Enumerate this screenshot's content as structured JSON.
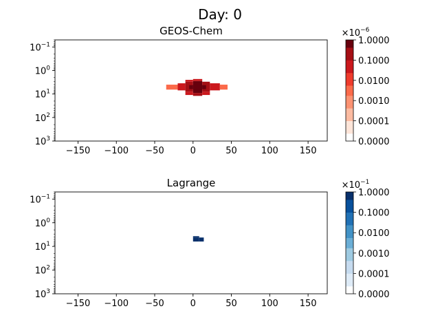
{
  "figure": {
    "suptitle": "Day: 0"
  },
  "chart_data": [
    {
      "type": "heatmap",
      "title": "GEOS-Chem",
      "xlabel": "",
      "ylabel": "",
      "xlim": [
        -180,
        175
      ],
      "ylim_log": [
        1000,
        0.05
      ],
      "y_scale": "log",
      "y_inverted": true,
      "xticks": [
        -150,
        -100,
        -50,
        0,
        50,
        100,
        150
      ],
      "xtick_labels": [
        "−150",
        "−100",
        "−50",
        "0",
        "50",
        "100",
        "150"
      ],
      "yticks": [
        0.1,
        1,
        10,
        100,
        1000
      ],
      "ytick_base": "10",
      "ytick_exps": [
        "−1",
        "0",
        "1",
        "2",
        "3"
      ],
      "colormap": "Reds",
      "colors": [
        "#ffffff",
        "#fee5d9",
        "#fcbba1",
        "#fc9272",
        "#fb6a4a",
        "#ef3b2c",
        "#cb181d",
        "#a50f15",
        "#67000d"
      ],
      "colorbar": {
        "levels": [
          0,
          0.0001,
          0.001,
          0.01,
          0.1,
          1
        ],
        "labels": [
          "0.0000",
          "0.0001",
          "0.0010",
          "0.0100",
          "0.1000",
          "1.0000"
        ],
        "multiplier_base": "×10",
        "multiplier_exp": "−6"
      },
      "cells": [
        {
          "x0": -20,
          "x1": -10,
          "y0": 3.5,
          "y1": 7,
          "v": 0.08
        },
        {
          "x0": -10,
          "x1": 0,
          "y0": 3,
          "y1": 8,
          "v": 0.3
        },
        {
          "x0": 0,
          "x1": 12,
          "y0": 2.8,
          "y1": 9,
          "v": 0.55
        },
        {
          "x0": 12,
          "x1": 22,
          "y0": 3,
          "y1": 8,
          "v": 0.3
        },
        {
          "x0": 22,
          "x1": 35,
          "y0": 3.5,
          "y1": 7,
          "v": 0.08
        },
        {
          "x0": -10,
          "x1": 0,
          "y0": 8,
          "y1": 11,
          "v": 0.1
        },
        {
          "x0": 0,
          "x1": 12,
          "y0": 9,
          "y1": 12,
          "v": 0.15
        },
        {
          "x0": 12,
          "x1": 22,
          "y0": 8,
          "y1": 11,
          "v": 0.1
        },
        {
          "x0": -10,
          "x1": 0,
          "y0": 2.5,
          "y1": 3,
          "v": 0.05
        },
        {
          "x0": 0,
          "x1": 12,
          "y0": 2.3,
          "y1": 2.8,
          "v": 0.08
        },
        {
          "x0": -5,
          "x1": 0,
          "y0": 4.2,
          "y1": 6.2,
          "v": 0.7
        },
        {
          "x0": 0,
          "x1": 12,
          "y0": 4,
          "y1": 6.5,
          "v": 1.0
        },
        {
          "x0": 12,
          "x1": 17,
          "y0": 4.2,
          "y1": 6.2,
          "v": 0.7
        },
        {
          "x0": -35,
          "x1": -20,
          "y0": 4,
          "y1": 6.5,
          "v": 0.005
        },
        {
          "x0": 35,
          "x1": 45,
          "y0": 4,
          "y1": 6.5,
          "v": 0.005
        }
      ]
    },
    {
      "type": "heatmap",
      "title": "Lagrange",
      "xlabel": "",
      "ylabel": "",
      "xlim": [
        -180,
        175
      ],
      "ylim_log": [
        1000,
        0.05
      ],
      "y_scale": "log",
      "y_inverted": true,
      "xticks": [
        -150,
        -100,
        -50,
        0,
        50,
        100,
        150
      ],
      "xtick_labels": [
        "−150",
        "−100",
        "−50",
        "0",
        "50",
        "100",
        "150"
      ],
      "yticks": [
        0.1,
        1,
        10,
        100,
        1000
      ],
      "ytick_base": "10",
      "ytick_exps": [
        "−1",
        "0",
        "1",
        "2",
        "3"
      ],
      "colormap": "Blues",
      "colors": [
        "#ffffff",
        "#deebf7",
        "#c6dbef",
        "#9ecae1",
        "#6baed6",
        "#4292c6",
        "#2171b5",
        "#08519c",
        "#08306b"
      ],
      "colorbar": {
        "levels": [
          0,
          0.0001,
          0.001,
          0.01,
          0.1,
          1
        ],
        "labels": [
          "0.0000",
          "0.0001",
          "0.0010",
          "0.0100",
          "0.1000",
          "1.0000"
        ],
        "multiplier_base": "×10",
        "multiplier_exp": "−1"
      },
      "cells": [
        {
          "x0": 0,
          "x1": 8,
          "y0": 4.2,
          "y1": 6.2,
          "v": 1.0
        },
        {
          "x0": 8,
          "x1": 14,
          "y0": 4.2,
          "y1": 6.2,
          "v": 0.75
        },
        {
          "x0": 0,
          "x1": 8,
          "y0": 3.7,
          "y1": 4.2,
          "v": 0.5
        }
      ]
    }
  ]
}
